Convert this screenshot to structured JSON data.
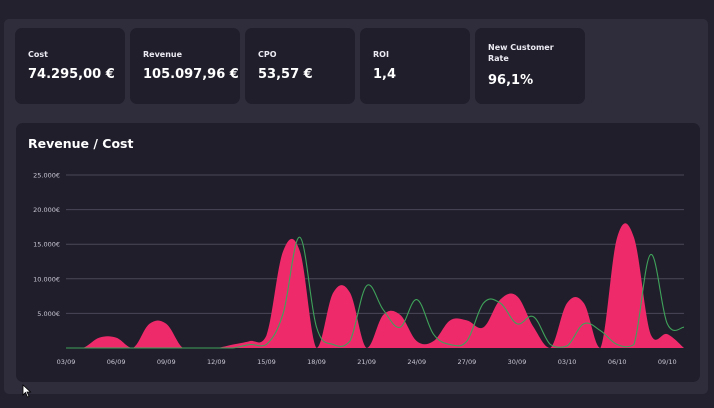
{
  "kpis": [
    {
      "label": "Cost",
      "value": "74.295,00 €"
    },
    {
      "label": "Revenue",
      "value": "105.097,96 €"
    },
    {
      "label": "CPO",
      "value": "53,57 €"
    },
    {
      "label": "ROI",
      "value": "1,4"
    },
    {
      "label": "New Customer Rate",
      "value": "96,1%"
    }
  ],
  "chart": {
    "title": "Revenue / Cost"
  },
  "colors": {
    "background": "#23212e",
    "panel": "#2f2d3b",
    "card": "#201e2b",
    "revenue": "#ee2a6b",
    "cost": "#3fa35a",
    "gridline": "#4a4858"
  },
  "icons": [
    "mouse-pointer-icon"
  ],
  "chart_data": {
    "type": "area",
    "title": "Revenue / Cost",
    "xlabel": "",
    "ylabel": "",
    "ylim": [
      0,
      25000
    ],
    "yticks": [
      "25.000€",
      "20.000€",
      "15.000€",
      "10.000€",
      "5.000€"
    ],
    "ytick_values": [
      25000,
      20000,
      15000,
      10000,
      5000
    ],
    "xticks": [
      "03/09",
      "06/09",
      "09/09",
      "12/09",
      "15/09",
      "18/09",
      "21/09",
      "24/09",
      "27/09",
      "30/09",
      "03/10",
      "06/10",
      "09/10"
    ],
    "grid": true,
    "x": [
      "03/09",
      "04/09",
      "05/09",
      "06/09",
      "07/09",
      "08/09",
      "09/09",
      "10/09",
      "11/09",
      "12/09",
      "13/09",
      "14/09",
      "15/09",
      "16/09",
      "17/09",
      "18/09",
      "19/09",
      "20/09",
      "21/09",
      "22/09",
      "23/09",
      "24/09",
      "25/09",
      "26/09",
      "27/09",
      "28/09",
      "29/09",
      "30/09",
      "01/10",
      "02/10",
      "03/10",
      "04/10",
      "05/10",
      "06/10",
      "07/10",
      "08/10",
      "09/10",
      "10/10"
    ],
    "series": [
      {
        "values": [
          0,
          0,
          1500,
          1500,
          0,
          3500,
          3500,
          0,
          0,
          0,
          500,
          1000,
          1800,
          14000,
          14000,
          0,
          8000,
          8000,
          0,
          4800,
          4800,
          1000,
          1000,
          4000,
          4000,
          3000,
          7000,
          7500,
          3000,
          0,
          6500,
          6500,
          0,
          16000,
          16000,
          2000,
          2000,
          0
        ]
      },
      {
        "values": [
          0,
          0,
          0,
          0,
          0,
          0,
          0,
          0,
          0,
          0,
          0,
          500,
          500,
          5000,
          16000,
          3000,
          500,
          1000,
          9000,
          5500,
          3000,
          7000,
          2000,
          500,
          1000,
          6500,
          6500,
          3500,
          4500,
          500,
          300,
          3500,
          2500,
          500,
          500,
          13500,
          3500,
          3000
        ]
      }
    ]
  }
}
